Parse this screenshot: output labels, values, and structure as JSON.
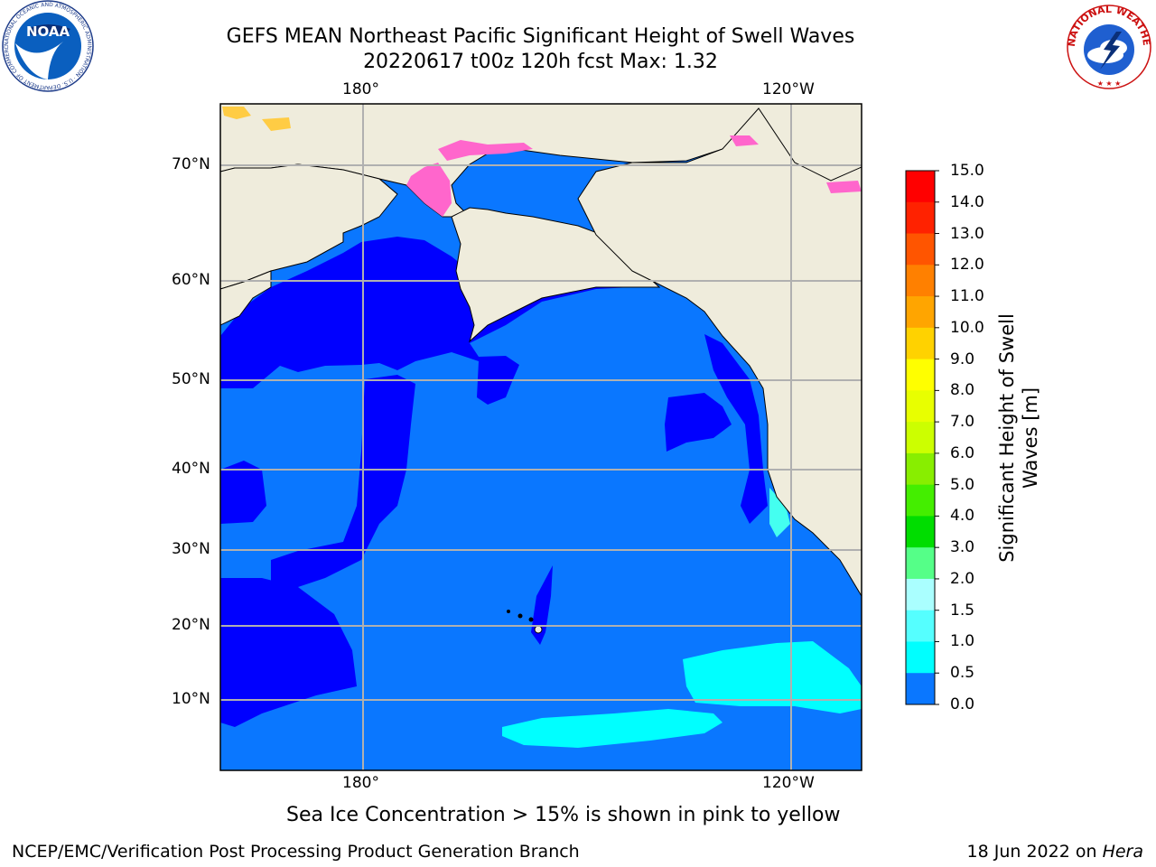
{
  "header": {
    "title": "GEFS MEAN Northeast Pacific Significant Height of Swell Waves",
    "subtitle": "20220617 t00z 120h fcst   Max: 1.32"
  },
  "logos": {
    "noaa_text": "NOAA",
    "noaa_ring_text": "NATIONAL OCEANIC AND ATMOSPHERIC ADMINISTRATION · U.S. DEPARTMENT OF COMMERCE",
    "nws_ring_text": "NATIONAL WEATHER SERVICE"
  },
  "map": {
    "lon_labels_top": [
      "180°",
      "120°W"
    ],
    "lon_labels_bottom": [
      "180°",
      "120°W"
    ],
    "lat_labels": [
      "70°N",
      "60°N",
      "50°N",
      "40°N",
      "30°N",
      "20°N",
      "10°N"
    ],
    "colors": {
      "land": "#efecdc",
      "swell_0_0.5": "#0000ff",
      "swell_0.5_1.0": "#0a77ff",
      "swell_1.0_1.5": "#00ffff",
      "swell_1.5_2.0": "#44fff0",
      "ice_pink": "#ff66cc",
      "ice_yellow": "#ffcc44",
      "grid": "#b0b0b0",
      "coast": "#000000"
    }
  },
  "colorbar": {
    "ticks": [
      "15.0",
      "14.0",
      "13.0",
      "12.0",
      "11.0",
      "10.0",
      "9.0",
      "8.0",
      "7.0",
      "6.0",
      "5.0",
      "4.0",
      "3.0",
      "2.0",
      "1.5",
      "1.0",
      "0.5",
      "0.0"
    ],
    "colors": [
      "#ff0000",
      "#ff2200",
      "#ff5500",
      "#ff8000",
      "#ffa500",
      "#ffd200",
      "#ffff00",
      "#e8ff00",
      "#ccff00",
      "#88ee00",
      "#44ee00",
      "#00dd00",
      "#55ff88",
      "#aaffff",
      "#55ffff",
      "#00ffff",
      "#0a77ff",
      "#0000ff"
    ],
    "label_line1": "Significant Height of Swell",
    "label_line2": "Waves [m]"
  },
  "notes": {
    "sea_ice": "Sea Ice Concentration > 15% is shown in pink to yellow"
  },
  "footer": {
    "left": "NCEP/EMC/Verification Post Processing Product Generation Branch",
    "date": "18 Jun 2022 on",
    "machine": "Hera"
  }
}
